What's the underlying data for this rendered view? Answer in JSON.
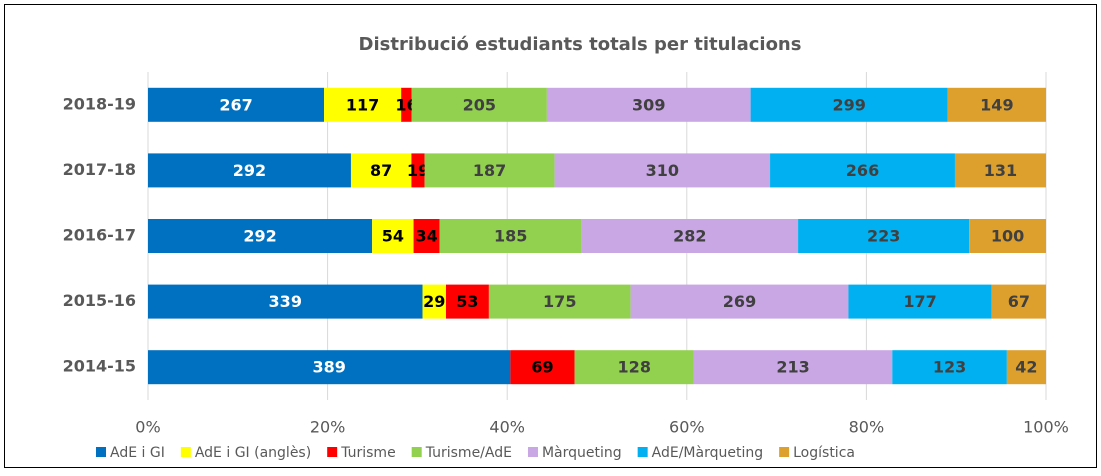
{
  "chart_data": {
    "type": "bar",
    "orientation": "horizontal",
    "stacking": "percent",
    "title": "Distribució estudiants totals per titulacions",
    "categories": [
      "2018-19",
      "2017-18",
      "2016-17",
      "2015-16",
      "2014-15"
    ],
    "series": [
      {
        "name": "AdE i GI",
        "color": "#0070c0",
        "label_color": "#ffffff",
        "values": [
          267,
          292,
          292,
          339,
          389
        ]
      },
      {
        "name": "AdE i GI (anglès)",
        "color": "#ffff00",
        "label_color": "#000000",
        "values": [
          117,
          87,
          54,
          29,
          null
        ]
      },
      {
        "name": "Turisme",
        "color": "#ff0000",
        "label_color": "#000000",
        "values": [
          16,
          19,
          34,
          53,
          69
        ]
      },
      {
        "name": "Turisme/AdE",
        "color": "#92d050",
        "label_color": "#404040",
        "values": [
          205,
          187,
          185,
          175,
          128
        ]
      },
      {
        "name": "Màrqueting",
        "color": "#c9a6e4",
        "label_color": "#404040",
        "values": [
          309,
          310,
          282,
          269,
          213
        ]
      },
      {
        "name": "AdE/Màrqueting",
        "color": "#00b0f0",
        "label_color": "#404040",
        "values": [
          299,
          266,
          223,
          177,
          123
        ]
      },
      {
        "name": "Logística",
        "color": "#dea02c",
        "label_color": "#404040",
        "values": [
          149,
          131,
          100,
          67,
          42
        ]
      }
    ],
    "xlim": [
      0,
      100
    ],
    "xticks": [
      {
        "value": 0,
        "label": "0%"
      },
      {
        "value": 20,
        "label": "20%"
      },
      {
        "value": 40,
        "label": "40%"
      },
      {
        "value": 60,
        "label": "60%"
      },
      {
        "value": 80,
        "label": "80%"
      },
      {
        "value": 100,
        "label": "100%"
      }
    ],
    "grid": true,
    "legend": "bottom"
  }
}
